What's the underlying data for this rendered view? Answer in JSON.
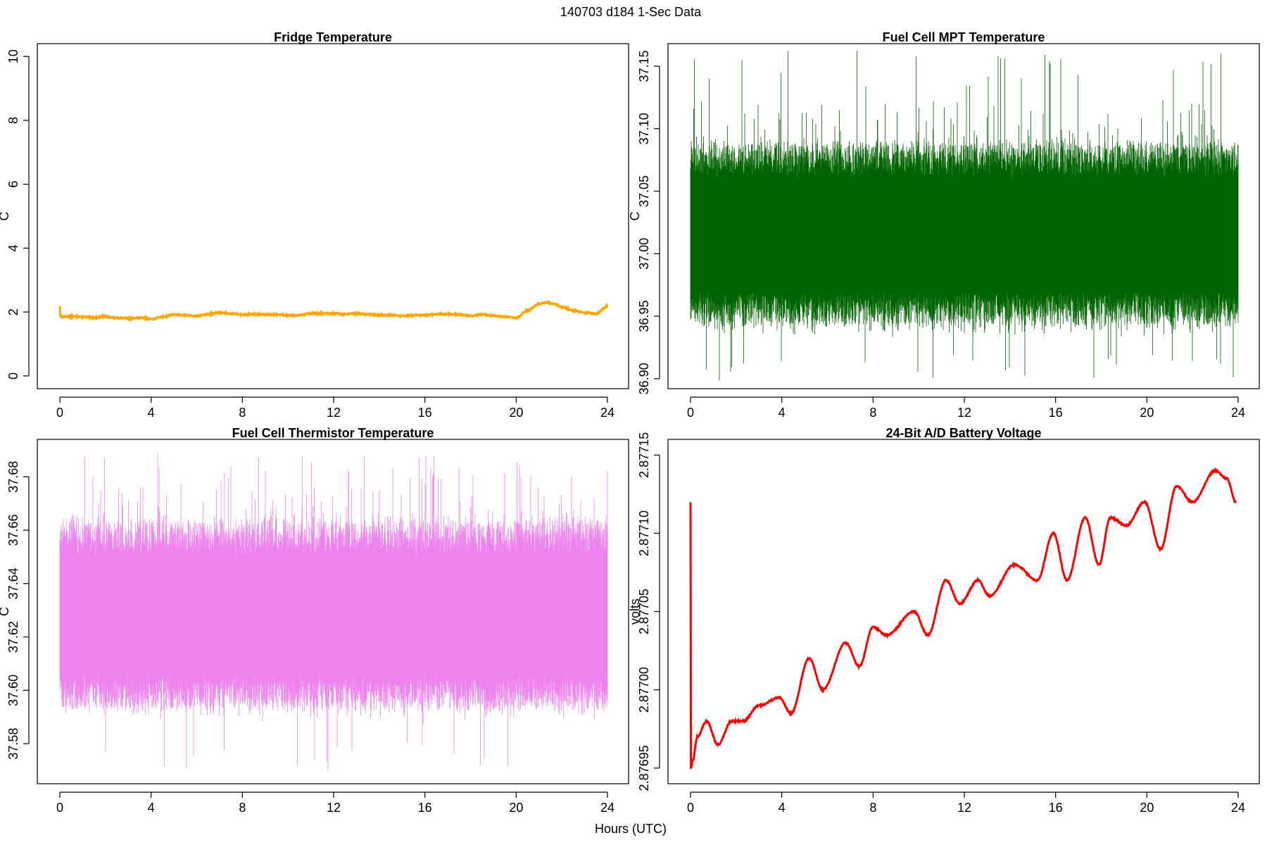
{
  "figure": {
    "title": "140703   d184   1-Sec Data",
    "xlabel": "Hours (UTC)"
  },
  "chart_data": [
    {
      "id": "fridge",
      "type": "line",
      "title": "Fridge Temperature",
      "ylabel": "C",
      "xlabel": "",
      "color": "#ffa500",
      "style": "smooth",
      "xlim": [
        0,
        24
      ],
      "ylim": [
        -0.4,
        10.4
      ],
      "xticks": [
        0,
        4,
        8,
        12,
        16,
        20,
        24
      ],
      "yticks": [
        "0",
        "2",
        "4",
        "6",
        "8",
        "10"
      ],
      "ytick_values": [
        0,
        2,
        4,
        6,
        8,
        10
      ],
      "x": [
        0,
        0.02,
        0.05,
        0.5,
        1.0,
        1.5,
        2.0,
        2.5,
        3.0,
        3.5,
        4.0,
        4.5,
        5.0,
        5.5,
        6.0,
        6.5,
        7.0,
        7.5,
        8.0,
        8.5,
        9.0,
        9.5,
        10.0,
        10.5,
        11.0,
        11.5,
        12.0,
        12.5,
        13.0,
        13.5,
        14.0,
        14.5,
        15.0,
        15.5,
        16.0,
        16.5,
        17.0,
        17.5,
        18.0,
        18.5,
        19.0,
        19.5,
        20.0,
        20.5,
        21.0,
        21.3,
        21.7,
        22.0,
        22.5,
        23.0,
        23.5,
        24.0
      ],
      "y": [
        2.2,
        1.86,
        1.85,
        1.86,
        1.85,
        1.82,
        1.86,
        1.82,
        1.8,
        1.82,
        1.78,
        1.85,
        1.92,
        1.9,
        1.87,
        1.93,
        1.98,
        1.95,
        1.92,
        1.93,
        1.92,
        1.92,
        1.9,
        1.9,
        1.96,
        1.95,
        1.95,
        1.93,
        1.95,
        1.93,
        1.9,
        1.9,
        1.88,
        1.9,
        1.9,
        1.93,
        1.93,
        1.92,
        1.88,
        1.92,
        1.88,
        1.85,
        1.82,
        2.05,
        2.25,
        2.3,
        2.25,
        2.15,
        2.05,
        1.98,
        1.95,
        2.18
      ]
    },
    {
      "id": "mpt",
      "type": "line",
      "title": "Fuel Cell MPT Temperature",
      "ylabel": "C",
      "xlabel": "",
      "color": "#006400",
      "style": "noise",
      "xlim": [
        0,
        24
      ],
      "ylim": [
        36.892,
        37.168
      ],
      "xticks": [
        0,
        4,
        8,
        12,
        16,
        20,
        24
      ],
      "yticks": [
        "36.90",
        "36.95",
        "37.00",
        "37.05",
        "37.10",
        "37.15"
      ],
      "ytick_values": [
        36.9,
        36.95,
        37.0,
        37.05,
        37.1,
        37.15
      ],
      "center_x": [
        0,
        24
      ],
      "center_y": [
        37.015,
        37.015
      ],
      "core_halfwidth": 0.07,
      "spike_lo": 36.898,
      "spike_hi": 37.163
    },
    {
      "id": "thermistor",
      "type": "line",
      "title": "Fuel Cell Thermistor Temperature",
      "ylabel": "C",
      "xlabel": "",
      "color": "#ee82ee",
      "style": "noise",
      "xlim": [
        0,
        24
      ],
      "ylim": [
        37.565,
        37.694
      ],
      "xticks": [
        0,
        4,
        8,
        12,
        16,
        20,
        24
      ],
      "yticks": [
        "37.58",
        "37.60",
        "37.62",
        "37.64",
        "37.66",
        "37.68"
      ],
      "ytick_values": [
        37.58,
        37.6,
        37.62,
        37.64,
        37.66,
        37.68
      ],
      "center_x": [
        0,
        24
      ],
      "center_y": [
        37.628,
        37.628
      ],
      "core_halfwidth": 0.034,
      "spike_lo": 37.57,
      "spike_hi": 37.689
    },
    {
      "id": "battery",
      "type": "line",
      "title": "24-Bit A/D Battery Voltage",
      "ylabel": "volts",
      "xlabel": "",
      "color": "#ff0000",
      "style": "smooth",
      "xlim": [
        0,
        24
      ],
      "ylim": [
        2.87694,
        2.87716
      ],
      "xticks": [
        0,
        4,
        8,
        12,
        16,
        20,
        24
      ],
      "yticks": [
        "2.87695",
        "2.87700",
        "2.87705",
        "2.87710",
        "2.87715"
      ],
      "ytick_values": [
        2.87695,
        2.877,
        2.87705,
        2.8771,
        2.87715
      ],
      "x": [
        0,
        0.01,
        0.03,
        0.1,
        0.3,
        0.7,
        1.2,
        1.8,
        2.3,
        3.0,
        3.9,
        4.4,
        5.2,
        5.8,
        6.8,
        7.4,
        8.0,
        8.6,
        9.8,
        10.4,
        11.2,
        11.8,
        12.6,
        13.1,
        14.2,
        15.2,
        15.9,
        16.5,
        17.3,
        17.9,
        18.4,
        19.1,
        19.9,
        20.6,
        21.3,
        22.0,
        23.0,
        23.5,
        23.9
      ],
      "y": [
        2.87712,
        2.87695,
        2.87695,
        2.876955,
        2.87697,
        2.87698,
        2.876965,
        2.87698,
        2.87698,
        2.87699,
        2.876995,
        2.876985,
        2.87702,
        2.877,
        2.87703,
        2.877015,
        2.87704,
        2.877035,
        2.87705,
        2.877035,
        2.87707,
        2.877055,
        2.87707,
        2.87706,
        2.87708,
        2.87707,
        2.8771,
        2.87707,
        2.87711,
        2.87708,
        2.87711,
        2.877105,
        2.87712,
        2.87709,
        2.87713,
        2.87712,
        2.87714,
        2.877135,
        2.87712
      ]
    }
  ]
}
